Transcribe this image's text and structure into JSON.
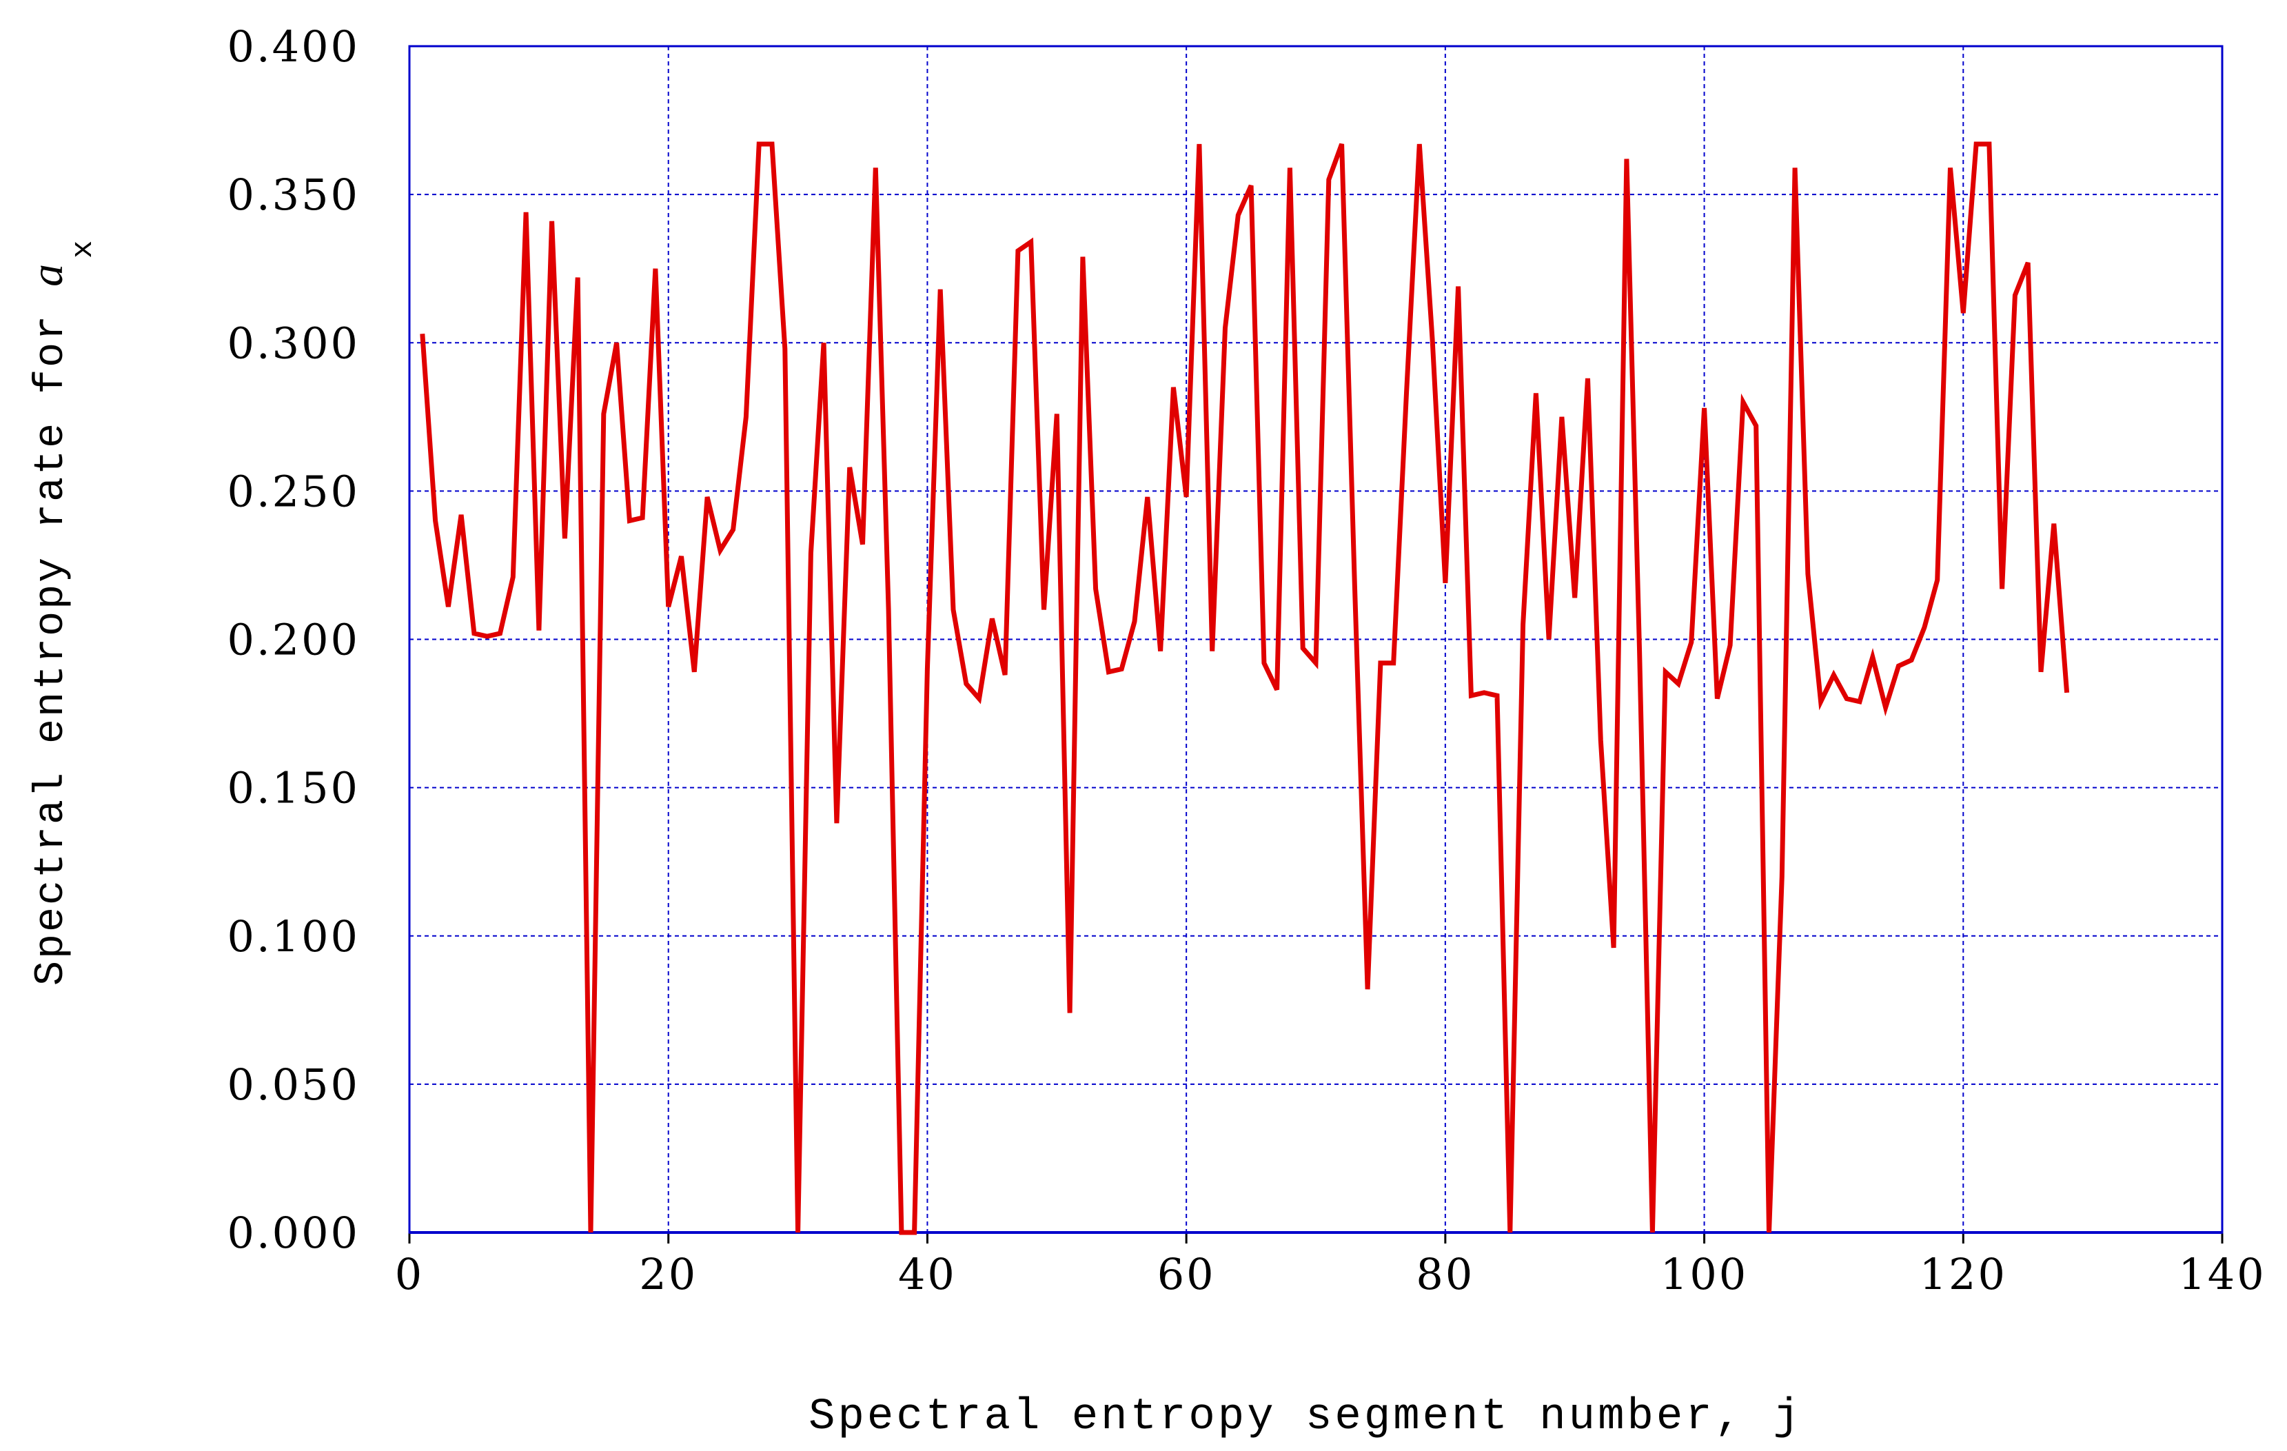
{
  "colors": {
    "line": "#e00000",
    "grid": "#0000cc",
    "frame": "#0000cc",
    "axis": "#000000"
  },
  "chart_data": {
    "type": "line",
    "title": "",
    "xlabel": "Spectral entropy segment number, j",
    "ylabel": "Spectral entropy rate for ",
    "ylabel_variable": "a",
    "ylabel_subscript": "x",
    "xlim": [
      0,
      140
    ],
    "ylim": [
      0,
      0.4
    ],
    "xticks": [
      "0",
      "20",
      "40",
      "60",
      "80",
      "100",
      "120",
      "140"
    ],
    "yticks": [
      "0.000",
      "0.050",
      "0.100",
      "0.150",
      "0.200",
      "0.250",
      "0.300",
      "0.350",
      "0.400"
    ],
    "grid": true,
    "legend": "none",
    "series": [
      {
        "x": [
          1,
          2,
          3,
          4,
          5,
          6,
          7,
          8,
          9,
          10,
          11,
          12,
          13,
          14,
          15,
          16,
          17,
          18,
          19,
          20,
          21,
          22,
          23,
          24,
          25,
          26,
          27,
          28,
          29,
          30,
          31,
          32,
          33,
          34,
          35,
          36,
          37,
          38,
          39,
          40,
          41,
          42,
          43,
          44,
          45,
          46,
          47,
          48,
          49,
          50,
          51,
          52,
          53,
          54,
          55,
          56,
          57,
          58,
          59,
          60,
          61,
          62,
          63,
          64,
          65,
          66,
          67,
          68,
          69,
          70,
          71,
          72,
          73,
          74,
          75,
          76,
          77,
          78,
          79,
          80,
          81,
          82,
          83,
          84,
          85,
          86,
          87,
          88,
          89,
          90,
          91,
          92,
          93,
          94,
          95,
          96,
          97,
          98,
          99,
          100,
          101,
          102,
          103,
          104,
          105,
          106,
          107,
          108,
          109,
          110,
          111,
          112,
          113,
          114,
          115,
          116,
          117,
          118,
          119,
          120,
          121,
          122,
          123,
          124,
          125,
          126,
          127,
          128
        ],
        "values": [
          0.303,
          0.24,
          0.211,
          0.242,
          0.202,
          0.201,
          0.202,
          0.221,
          0.344,
          0.203,
          0.341,
          0.234,
          0.322,
          0.0,
          0.276,
          0.3,
          0.24,
          0.241,
          0.325,
          0.211,
          0.228,
          0.189,
          0.248,
          0.23,
          0.237,
          0.275,
          0.367,
          0.367,
          0.298,
          0.0,
          0.229,
          0.3,
          0.138,
          0.258,
          0.232,
          0.359,
          0.21,
          0.0,
          0.0,
          0.19,
          0.318,
          0.21,
          0.185,
          0.18,
          0.207,
          0.188,
          0.331,
          0.334,
          0.21,
          0.276,
          0.074,
          0.329,
          0.217,
          0.189,
          0.19,
          0.206,
          0.248,
          0.196,
          0.285,
          0.248,
          0.367,
          0.196,
          0.305,
          0.343,
          0.353,
          0.192,
          0.183,
          0.359,
          0.197,
          0.192,
          0.355,
          0.367,
          0.218,
          0.082,
          0.192,
          0.192,
          0.283,
          0.367,
          0.301,
          0.219,
          0.319,
          0.181,
          0.182,
          0.181,
          0.0,
          0.205,
          0.283,
          0.2,
          0.275,
          0.214,
          0.288,
          0.166,
          0.096,
          0.362,
          0.196,
          0.0,
          0.189,
          0.185,
          0.199,
          0.278,
          0.18,
          0.198,
          0.28,
          0.272,
          0.0,
          0.12,
          0.359,
          0.222,
          0.179,
          0.188,
          0.18,
          0.179,
          0.194,
          0.177,
          0.191,
          0.193,
          0.204,
          0.22,
          0.359,
          0.31,
          0.367,
          0.367,
          0.217,
          0.316,
          0.327,
          0.189,
          0.239,
          0.182
        ]
      }
    ]
  }
}
